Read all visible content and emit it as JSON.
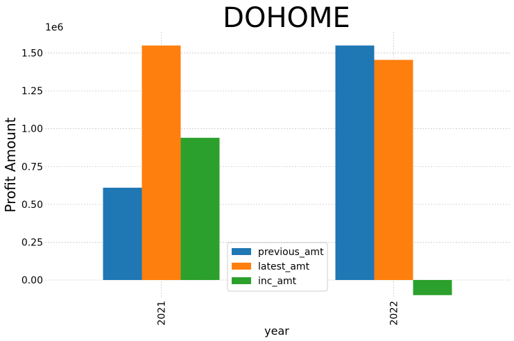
{
  "chart_data": {
    "type": "bar",
    "title": "DOHOME",
    "xlabel": "year",
    "ylabel": "Profit Amount",
    "y_offset_label": "1e6",
    "categories": [
      "2021",
      "2022"
    ],
    "series": [
      {
        "name": "previous_amt",
        "color": "#1f77b4",
        "values": [
          610000,
          1550000
        ]
      },
      {
        "name": "latest_amt",
        "color": "#ff7f0e",
        "values": [
          1550000,
          1455000
        ]
      },
      {
        "name": "inc_amt",
        "color": "#2ca02c",
        "values": [
          940000,
          -100000
        ]
      }
    ],
    "yticks": [
      0,
      250000,
      500000,
      750000,
      1000000,
      1250000,
      1500000
    ],
    "ytick_labels": [
      "0.00",
      "0.25",
      "0.50",
      "0.75",
      "1.00",
      "1.25",
      "1.50"
    ],
    "ylim": [
      -110000,
      1640000
    ],
    "grid": true,
    "legend_position": "bottom-center"
  }
}
